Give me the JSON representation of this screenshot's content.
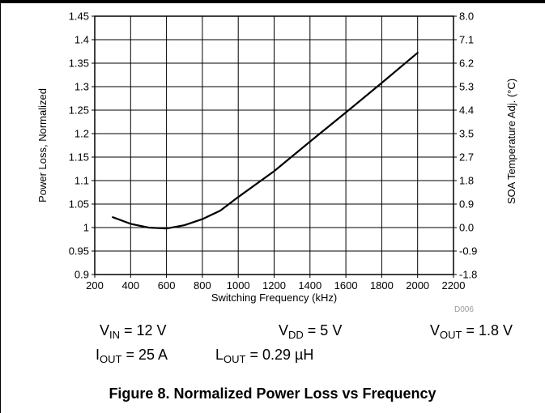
{
  "chart_data": {
    "type": "line",
    "x": [
      300,
      400,
      500,
      600,
      700,
      800,
      900,
      1000,
      1200,
      1400,
      1600,
      1800,
      2000
    ],
    "y": [
      1.022,
      1.008,
      1.0,
      0.998,
      1.005,
      1.018,
      1.036,
      1.065,
      1.12,
      1.183,
      1.245,
      1.308,
      1.372
    ],
    "xlim": [
      200,
      2200
    ],
    "ylim": [
      0.9,
      1.45
    ],
    "y2lim": [
      -1.8,
      8.0
    ],
    "xticks": [
      "200",
      "400",
      "600",
      "800",
      "1000",
      "1200",
      "1400",
      "1600",
      "1800",
      "2000",
      "2200"
    ],
    "yticks": [
      "0.9",
      "0.95",
      "1",
      "1.05",
      "1.1",
      "1.15",
      "1.2",
      "1.25",
      "1.3",
      "1.35",
      "1.4",
      "1.45"
    ],
    "y2ticks": [
      "-1.8",
      "-0.9",
      "0.0",
      "0.9",
      "1.8",
      "2.7",
      "3.5",
      "4.4",
      "5.3",
      "6.2",
      "7.1",
      "8.0"
    ],
    "xlabel": "Switching Frequency (kHz)",
    "ylabel": "Power Loss, Normalized",
    "y2label": "SOA Temperature Adj. (°C)",
    "grid": true,
    "line_color": "#000000"
  },
  "conditions": {
    "vin": {
      "main": "V",
      "sub": "IN",
      "rest": " = 12 V"
    },
    "vdd": {
      "main": "V",
      "sub": "DD",
      "rest": " = 5 V"
    },
    "vout": {
      "main": "V",
      "sub": "OUT",
      "rest": " = 1.8 V"
    },
    "iout": {
      "main": "I",
      "sub": "OUT",
      "rest": " = 25 A"
    },
    "lout": {
      "main": "L",
      "sub": "OUT",
      "rest": " = 0.29 µH"
    }
  },
  "figure_code": "D006",
  "caption": "Figure 8. Normalized Power Loss vs Frequency"
}
